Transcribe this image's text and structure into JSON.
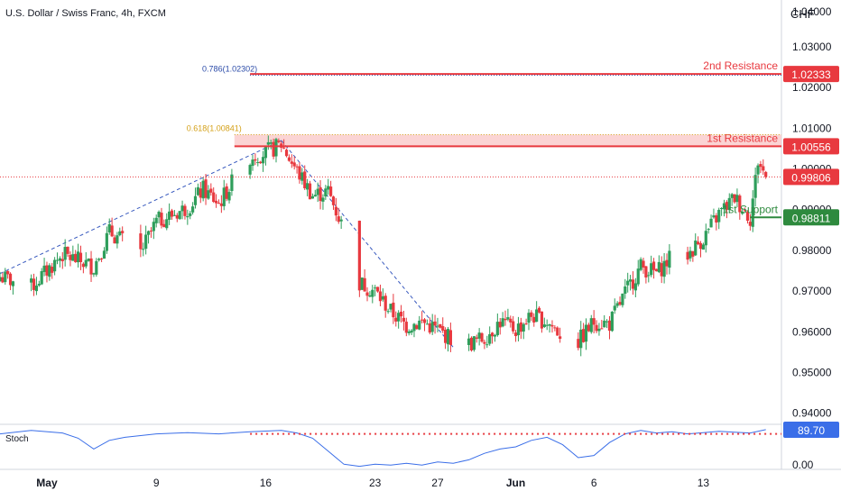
{
  "header": {
    "symbol_title": "U.S. Dollar / Swiss Franc, 4h, FXCM",
    "currency": "CHF"
  },
  "colors": {
    "bull": "#2e9e5b",
    "bear": "#e8393f",
    "resistance": "#e8393f",
    "support": "#2e8a3e",
    "zone": "#f9c6c6",
    "fib_786": "#2a4aa8",
    "fib_618": "#d4a017",
    "trend": "#3a5bbf",
    "stoch": "#3a6ee8",
    "current": "#e8393f",
    "axis_text": "#131722",
    "grid": "#e0e3eb"
  },
  "chart_data": [
    {
      "type": "candlestick",
      "title": "U.S. Dollar / Swiss Franc, 4h, FXCM",
      "ylabel": "CHF",
      "ylim": [
        0.9375,
        1.0415
      ],
      "y_ticks": [
        "0.94000",
        "0.95000",
        "0.96000",
        "0.97000",
        "0.98000",
        "0.99000",
        "1.00000",
        "1.01000",
        "1.02000",
        "1.03000",
        "1.04000"
      ],
      "x_ticks": [
        {
          "label": "May",
          "date": "2022-05-02"
        },
        {
          "label": "9",
          "date": "2022-05-09"
        },
        {
          "label": "16",
          "date": "2022-05-16"
        },
        {
          "label": "23",
          "date": "2022-05-23"
        },
        {
          "label": "27",
          "date": "2022-05-27"
        },
        {
          "label": "Jun",
          "date": "2022-06-01"
        },
        {
          "label": "6",
          "date": "2022-06-06"
        },
        {
          "label": "13",
          "date": "2022-06-13"
        }
      ],
      "x_range": [
        "2022-04-29",
        "2022-06-18"
      ],
      "path": [
        [
          "2022-04-29",
          0.9735
        ],
        [
          "2022-05-01",
          0.971
        ],
        [
          "2022-05-03",
          0.979
        ],
        [
          "2022-05-05",
          0.976
        ],
        [
          "2022-05-06",
          0.9845
        ],
        [
          "2022-05-08",
          0.9795
        ],
        [
          "2022-05-09",
          0.987
        ],
        [
          "2022-05-11",
          0.9905
        ],
        [
          "2022-05-12",
          0.995
        ],
        [
          "2022-05-13",
          0.9915
        ],
        [
          "2022-05-14",
          0.9975
        ],
        [
          "2022-05-15",
          1.003
        ],
        [
          "2022-05-16",
          1.004
        ],
        [
          "2022-05-17",
          1.006
        ],
        [
          "2022-05-18",
          0.9995
        ],
        [
          "2022-05-19",
          0.9935
        ],
        [
          "2022-05-20",
          0.9945
        ],
        [
          "2022-05-21",
          0.985
        ],
        [
          "2022-05-22",
          0.972
        ],
        [
          "2022-05-23",
          0.97
        ],
        [
          "2022-05-24",
          0.965
        ],
        [
          "2022-05-25",
          0.9615
        ],
        [
          "2022-05-26",
          0.9625
        ],
        [
          "2022-05-27",
          0.9605
        ],
        [
          "2022-05-28",
          0.958
        ],
        [
          "2022-05-29",
          0.957
        ],
        [
          "2022-05-30",
          0.9585
        ],
        [
          "2022-05-31",
          0.9625
        ],
        [
          "2022-06-01",
          0.9605
        ],
        [
          "2022-06-02",
          0.964
        ],
        [
          "2022-06-03",
          0.9625
        ],
        [
          "2022-06-04",
          0.959
        ],
        [
          "2022-06-05",
          0.9575
        ],
        [
          "2022-06-06",
          0.9625
        ],
        [
          "2022-06-07",
          0.962
        ],
        [
          "2022-06-08",
          0.9695
        ],
        [
          "2022-06-09",
          0.976
        ],
        [
          "2022-06-10",
          0.9745
        ],
        [
          "2022-06-11",
          0.9785
        ],
        [
          "2022-06-12",
          0.979
        ],
        [
          "2022-06-13",
          0.983
        ],
        [
          "2022-06-14",
          0.989
        ],
        [
          "2022-06-15",
          0.993
        ],
        [
          "2022-06-16",
          0.988
        ],
        [
          "2022-06-16T12:00",
          1.002
        ],
        [
          "2022-06-17",
          0.998
        ]
      ],
      "annotations": [
        {
          "kind": "level",
          "label": "2nd Resistance",
          "price": 1.02333,
          "price_label": "1.02333",
          "from": "2022-05-15"
        },
        {
          "kind": "level",
          "label": "1st Resistance",
          "price": 1.00556,
          "price_label": "1.00556",
          "from": "2022-05-14"
        },
        {
          "kind": "level",
          "label": "1st Support",
          "price": 0.98811,
          "price_label": "0.98811",
          "from": "2022-06-16"
        },
        {
          "kind": "fib",
          "label": "0.786(1.02302)",
          "price": 1.02302,
          "from": "2022-05-15"
        },
        {
          "kind": "fib",
          "label": "0.618(1.00841)",
          "price": 1.00841,
          "from": "2022-05-14"
        },
        {
          "kind": "zone",
          "price_low": 1.00556,
          "price_high": 1.00841,
          "from": "2022-05-14"
        }
      ],
      "current_price": 0.99806,
      "current_price_label": "0.99806",
      "trendlines": [
        {
          "from": [
            "2022-04-29",
            0.9743
          ],
          "to": [
            "2022-05-17",
            1.007
          ]
        },
        {
          "from": [
            "2022-05-17",
            1.007
          ],
          "to": [
            "2022-05-28",
            0.9562
          ]
        }
      ]
    },
    {
      "type": "line",
      "name": "Stoch",
      "ylim": [
        0,
        100
      ],
      "y_ticks": [
        "0.00"
      ],
      "current_value": 89.7,
      "current_value_label": "89.70",
      "overbought_level": 80,
      "points": [
        [
          "2022-04-29",
          80
        ],
        [
          "2022-05-01",
          88
        ],
        [
          "2022-05-03",
          82
        ],
        [
          "2022-05-04",
          70
        ],
        [
          "2022-05-05",
          45
        ],
        [
          "2022-05-06",
          65
        ],
        [
          "2022-05-07",
          72
        ],
        [
          "2022-05-09",
          80
        ],
        [
          "2022-05-11",
          83
        ],
        [
          "2022-05-13",
          80
        ],
        [
          "2022-05-15",
          85
        ],
        [
          "2022-05-17",
          88
        ],
        [
          "2022-05-18",
          82
        ],
        [
          "2022-05-19",
          70
        ],
        [
          "2022-05-20",
          40
        ],
        [
          "2022-05-21",
          10
        ],
        [
          "2022-05-22",
          5
        ],
        [
          "2022-05-23",
          10
        ],
        [
          "2022-05-24",
          8
        ],
        [
          "2022-05-25",
          12
        ],
        [
          "2022-05-26",
          8
        ],
        [
          "2022-05-27",
          15
        ],
        [
          "2022-05-28",
          12
        ],
        [
          "2022-05-29",
          20
        ],
        [
          "2022-05-30",
          35
        ],
        [
          "2022-05-31",
          45
        ],
        [
          "2022-06-01",
          50
        ],
        [
          "2022-06-02",
          65
        ],
        [
          "2022-06-03",
          72
        ],
        [
          "2022-06-04",
          55
        ],
        [
          "2022-06-05",
          25
        ],
        [
          "2022-06-06",
          30
        ],
        [
          "2022-06-07",
          60
        ],
        [
          "2022-06-08",
          80
        ],
        [
          "2022-06-09",
          88
        ],
        [
          "2022-06-10",
          82
        ],
        [
          "2022-06-11",
          85
        ],
        [
          "2022-06-12",
          80
        ],
        [
          "2022-06-13",
          83
        ],
        [
          "2022-06-14",
          86
        ],
        [
          "2022-06-15",
          84
        ],
        [
          "2022-06-16",
          82
        ],
        [
          "2022-06-17",
          89.7
        ]
      ]
    }
  ]
}
